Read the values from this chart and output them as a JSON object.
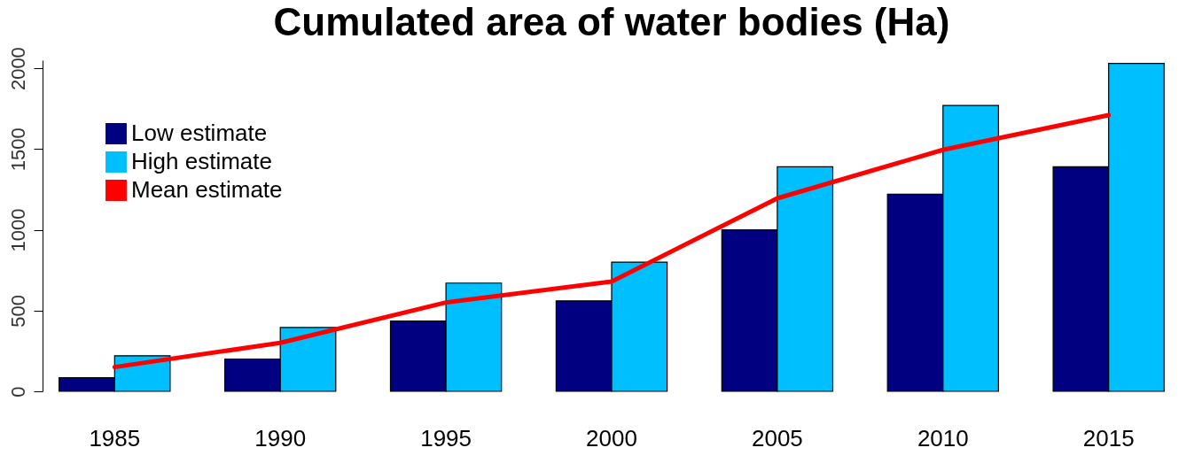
{
  "chart_data": {
    "type": "bar",
    "title": "Cumulated area of water bodies (Ha)",
    "categories": [
      "1985",
      "1990",
      "1995",
      "2000",
      "2005",
      "2010",
      "2015"
    ],
    "series": [
      {
        "name": "Low estimate",
        "color": "#000080",
        "values": [
          85,
          200,
          435,
          560,
          1000,
          1220,
          1390
        ]
      },
      {
        "name": "High estimate",
        "color": "#00bfff",
        "values": [
          220,
          395,
          670,
          800,
          1390,
          1770,
          2030
        ]
      },
      {
        "name": "Mean estimate",
        "type": "line",
        "color": "#ff0000",
        "values": [
          150,
          300,
          550,
          680,
          1195,
          1495,
          1710
        ]
      }
    ],
    "ylim": [
      0,
      2050
    ],
    "yticks": [
      0,
      500,
      1000,
      1500,
      2000
    ],
    "grid": false,
    "legend": "top left"
  }
}
